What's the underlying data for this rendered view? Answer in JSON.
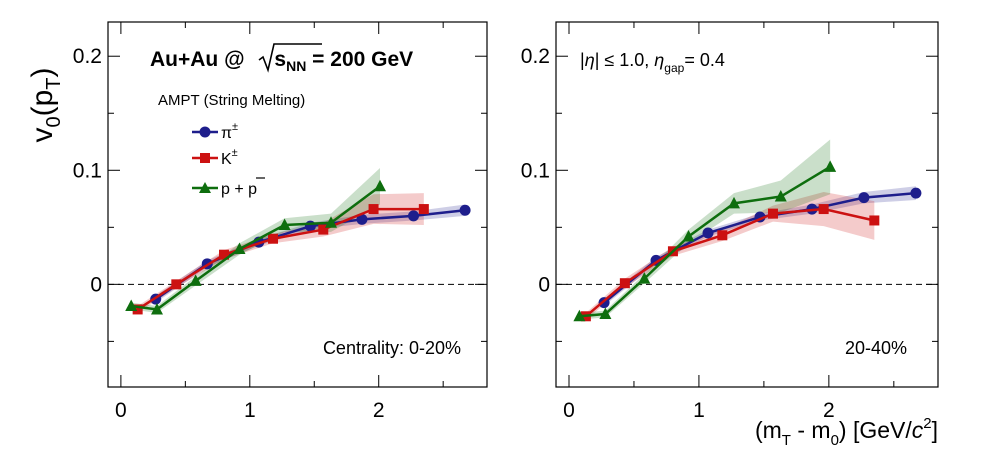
{
  "chart_data": [
    {
      "type": "line",
      "panel": "left",
      "ylabel": "v0(pT)",
      "xlabel": "",
      "xlim": [
        -0.1,
        2.84
      ],
      "ylim": [
        -0.09,
        0.23
      ],
      "xticks": [
        "0",
        "1",
        "2"
      ],
      "yticks": [
        "0",
        "0.1",
        "0.2"
      ],
      "title": "Au+Au @ √sNN = 200 GeV",
      "title_parts": {
        "prefix": "Au+Au @ ",
        "sqrt": "s",
        "sub": "NN",
        "suffix": " = 200 GeV"
      },
      "model": "AMPT (String Melting)",
      "centrality": "Centrality: 0-20%",
      "series": [
        {
          "name": "π±",
          "color": "#1e1e8c",
          "marker": "circle",
          "x": [
            0.27,
            0.67,
            1.07,
            1.47,
            1.87,
            2.27,
            2.67
          ],
          "y": [
            -0.013,
            0.018,
            0.037,
            0.051,
            0.057,
            0.06,
            0.065
          ],
          "band": [
            0.003,
            0.003,
            0.003,
            0.003,
            0.004,
            0.004,
            0.005
          ]
        },
        {
          "name": "K±",
          "color": "#cc1111",
          "marker": "square",
          "x": [
            0.13,
            0.43,
            0.8,
            1.18,
            1.57,
            1.96,
            2.35
          ],
          "y": [
            -0.022,
            0.0,
            0.026,
            0.04,
            0.048,
            0.066,
            0.066
          ],
          "band": [
            0.003,
            0.003,
            0.004,
            0.004,
            0.006,
            0.013,
            0.014
          ]
        },
        {
          "name": "p + p̄",
          "color": "#0e6e0e",
          "marker": "triangle",
          "x": [
            0.08,
            0.28,
            0.58,
            0.92,
            1.27,
            1.63,
            2.01
          ],
          "y": [
            -0.019,
            -0.022,
            0.003,
            0.031,
            0.052,
            0.054,
            0.086
          ],
          "band": [
            0.003,
            0.003,
            0.004,
            0.005,
            0.006,
            0.008,
            0.016
          ]
        }
      ]
    },
    {
      "type": "line",
      "panel": "right",
      "ylabel": "",
      "xlabel": "(mT - m0) [GeV/c2]",
      "xlim": [
        -0.1,
        2.84
      ],
      "ylim": [
        -0.09,
        0.23
      ],
      "xticks": [
        "0",
        "1",
        "2"
      ],
      "yticks": [
        "0",
        "0.1",
        "0.2"
      ],
      "eta_text": "|η| ≤ 1.0, ηgap= 0.4",
      "centrality": "20-40%",
      "series": [
        {
          "name": "π±",
          "color": "#1e1e8c",
          "marker": "circle",
          "x": [
            0.27,
            0.67,
            1.07,
            1.47,
            1.87,
            2.27,
            2.67
          ],
          "y": [
            -0.016,
            0.021,
            0.045,
            0.059,
            0.066,
            0.076,
            0.08
          ],
          "band": [
            0.003,
            0.003,
            0.003,
            0.003,
            0.004,
            0.005,
            0.006
          ]
        },
        {
          "name": "K±",
          "color": "#cc1111",
          "marker": "square",
          "x": [
            0.13,
            0.43,
            0.8,
            1.18,
            1.57,
            1.96,
            2.35
          ],
          "y": [
            -0.028,
            0.001,
            0.029,
            0.043,
            0.062,
            0.066,
            0.056
          ],
          "band": [
            0.003,
            0.004,
            0.004,
            0.005,
            0.007,
            0.015,
            0.017
          ]
        },
        {
          "name": "p + p̄",
          "color": "#0e6e0e",
          "marker": "triangle",
          "x": [
            0.08,
            0.28,
            0.58,
            0.92,
            1.27,
            1.63,
            2.01
          ],
          "y": [
            -0.028,
            -0.026,
            0.005,
            0.042,
            0.071,
            0.077,
            0.103
          ],
          "band": [
            0.003,
            0.003,
            0.004,
            0.006,
            0.009,
            0.014,
            0.024
          ]
        }
      ]
    }
  ]
}
